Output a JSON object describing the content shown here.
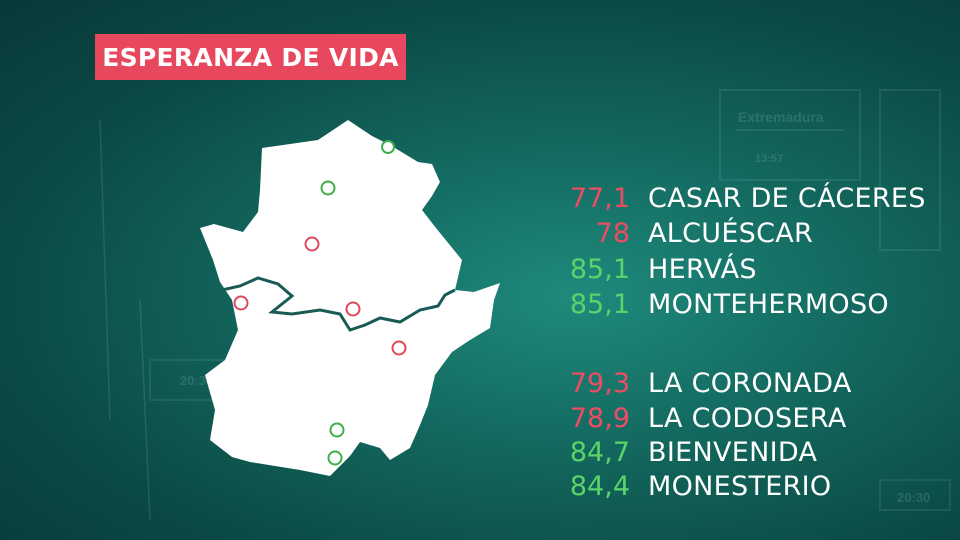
{
  "title": "ESPERANZA DE VIDA",
  "colors": {
    "badge": "#e8485e",
    "low": "#ec4d62",
    "high": "#5ad46a",
    "map_fill": "#ffffff",
    "border": "#1a5a56"
  },
  "background_text": {
    "region": "Extremadura",
    "clock1": "13:57",
    "clock2": "20:30",
    "clock3": "20:30"
  },
  "groups": [
    {
      "items": [
        {
          "value": "77,1",
          "name": "CASAR DE CÁCERES",
          "tone": "low"
        },
        {
          "value": "78",
          "name": "ALCUÉSCAR",
          "tone": "low"
        },
        {
          "value": "85,1",
          "name": "HERVÁS",
          "tone": "high"
        },
        {
          "value": "85,1",
          "name": "MONTEHERMOSO",
          "tone": "high"
        }
      ]
    },
    {
      "items": [
        {
          "value": "79,3",
          "name": "LA CORONADA",
          "tone": "low"
        },
        {
          "value": "78,9",
          "name": "LA CODOSERA",
          "tone": "low"
        },
        {
          "value": "84,7",
          "name": "BIENVENIDA",
          "tone": "high"
        },
        {
          "value": "84,4",
          "name": "MONESTERIO",
          "tone": "high"
        }
      ]
    }
  ]
}
